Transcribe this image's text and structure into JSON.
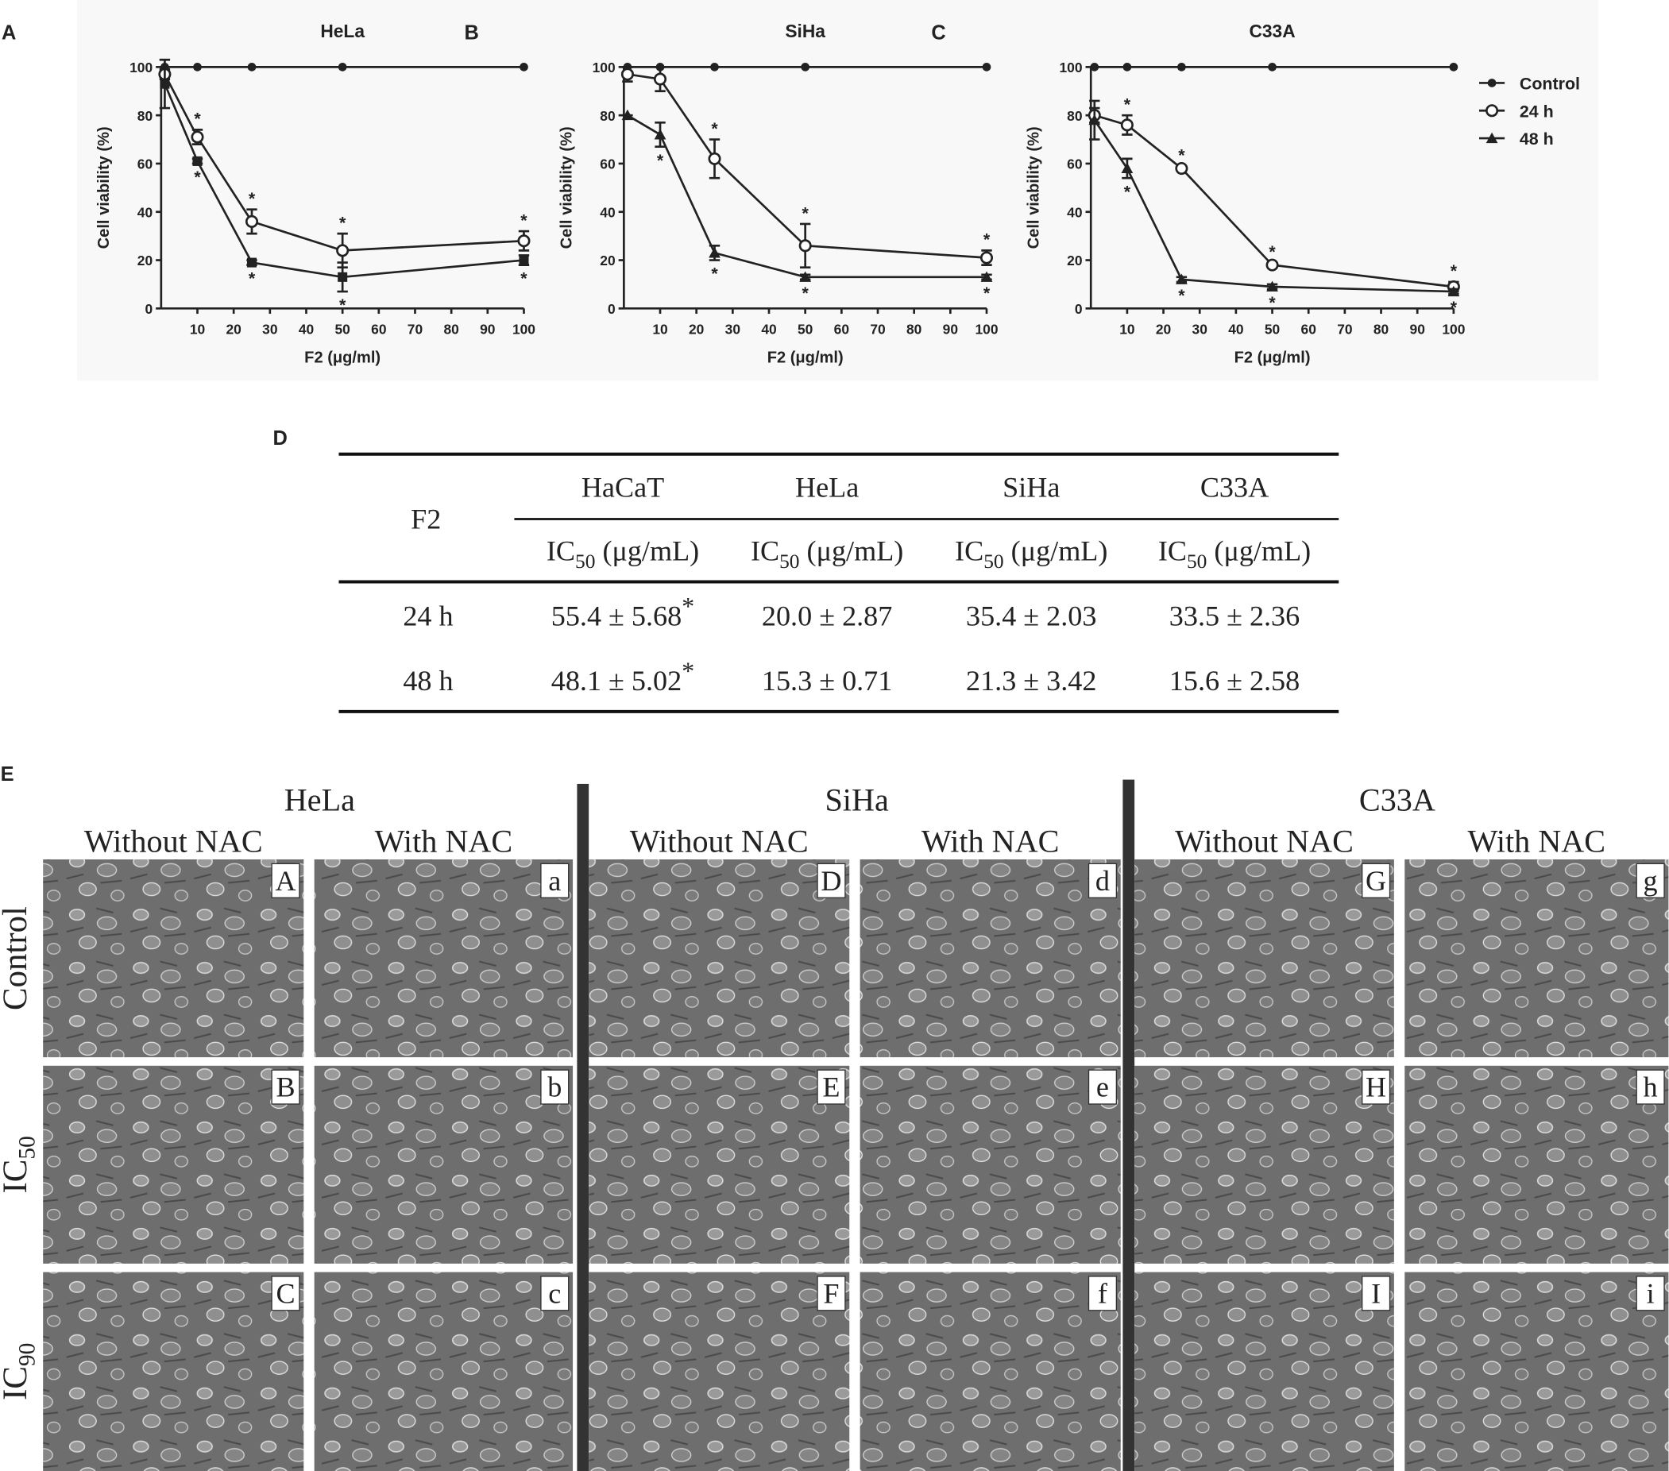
{
  "chart_data": [
    {
      "type": "line",
      "panel": "A",
      "title": "HeLa",
      "xlabel": "F2 (μg/ml)",
      "ylabel": "Cell viability (%)",
      "x": [
        1,
        10,
        25,
        50,
        100
      ],
      "xlim": [
        0,
        100
      ],
      "xticks": [
        10,
        20,
        30,
        40,
        50,
        60,
        70,
        80,
        90,
        100
      ],
      "ylim": [
        0,
        100
      ],
      "yticks": [
        0,
        20,
        40,
        60,
        80,
        100
      ],
      "series": [
        {
          "name": "Control",
          "color": "#222222",
          "marker": "filled-circle",
          "values": [
            100,
            100,
            100,
            100,
            100
          ]
        },
        {
          "name": "24 h",
          "color": "#222222",
          "marker": "open-circle",
          "values": [
            97,
            71,
            36,
            24,
            28
          ],
          "errors": [
            2,
            3,
            5,
            7,
            4
          ],
          "significance": [
            null,
            "*",
            "*",
            "*",
            "*"
          ],
          "significance_position": "above"
        },
        {
          "name": "48 h",
          "color": "#222222",
          "marker": "square",
          "values": [
            93,
            61,
            19,
            13,
            20
          ],
          "errors": [
            10,
            1,
            1,
            6,
            2
          ],
          "significance": [
            null,
            "*",
            "*",
            "*",
            "*"
          ],
          "significance_position": "below"
        }
      ]
    },
    {
      "type": "line",
      "panel": "B",
      "title": "SiHa",
      "xlabel": "F2 (μg/ml)",
      "ylabel": "Cell viability (%)",
      "x": [
        1,
        10,
        25,
        50,
        100
      ],
      "xlim": [
        0,
        100
      ],
      "xticks": [
        10,
        20,
        30,
        40,
        50,
        60,
        70,
        80,
        90,
        100
      ],
      "ylim": [
        0,
        100
      ],
      "yticks": [
        0,
        20,
        40,
        60,
        80,
        100
      ],
      "series": [
        {
          "name": "Control",
          "color": "#222222",
          "marker": "filled-circle",
          "values": [
            100,
            100,
            100,
            100,
            100
          ]
        },
        {
          "name": "24 h",
          "color": "#222222",
          "marker": "open-circle",
          "values": [
            97,
            95,
            62,
            26,
            21
          ],
          "errors": [
            3,
            5,
            8,
            9,
            3
          ],
          "significance": [
            null,
            null,
            "*",
            "*",
            "*"
          ],
          "significance_position": "above"
        },
        {
          "name": "48 h",
          "color": "#222222",
          "marker": "triangle",
          "values": [
            80,
            72,
            23,
            13,
            13
          ],
          "errors": [
            0,
            5,
            3,
            1,
            1
          ],
          "significance": [
            null,
            "*",
            "*",
            "*",
            "*"
          ],
          "significance_position": "below"
        }
      ]
    },
    {
      "type": "line",
      "panel": "C",
      "title": "C33A",
      "xlabel": "F2 (μg/ml)",
      "ylabel": "Cell viability (%)",
      "x": [
        1,
        10,
        25,
        50,
        100
      ],
      "xlim": [
        0,
        100
      ],
      "xticks": [
        10,
        20,
        30,
        40,
        50,
        60,
        70,
        80,
        90,
        100
      ],
      "ylim": [
        0,
        100
      ],
      "yticks": [
        0,
        20,
        40,
        60,
        80,
        100
      ],
      "legend": "right",
      "series": [
        {
          "name": "Control",
          "color": "#222222",
          "marker": "filled-circle",
          "values": [
            100,
            100,
            100,
            100,
            100
          ]
        },
        {
          "name": "24 h",
          "color": "#222222",
          "marker": "open-circle",
          "values": [
            80,
            76,
            58,
            18,
            9
          ],
          "errors": [
            3,
            4,
            1,
            1,
            2
          ],
          "significance": [
            null,
            "*",
            "*",
            "*",
            "*"
          ],
          "significance_position": "above"
        },
        {
          "name": "48 h",
          "color": "#222222",
          "marker": "triangle",
          "values": [
            78,
            58,
            12,
            9,
            7
          ],
          "errors": [
            8,
            4,
            1,
            1,
            1
          ],
          "significance": [
            null,
            "*",
            "*",
            "*",
            "*"
          ],
          "significance_position": "below"
        }
      ]
    }
  ],
  "table": {
    "panel": "D",
    "row_header": "F2",
    "columns": [
      "HaCaT",
      "HeLa",
      "SiHa",
      "C33A"
    ],
    "subheader": {
      "base": "IC",
      "sub": "50",
      "unit": " (μg/mL)"
    },
    "rows": [
      {
        "label": "24 h",
        "cells": [
          "55.4 ± 5.68",
          "20.0 ± 2.87",
          "35.4 ± 2.03",
          "33.5 ± 2.36"
        ],
        "notes": [
          "*",
          null,
          null,
          null
        ]
      },
      {
        "label": "48 h",
        "cells": [
          "48.1 ± 5.02",
          "15.3 ± 0.71",
          "21.3 ± 3.42",
          "15.6 ± 2.58"
        ],
        "notes": [
          "*",
          null,
          null,
          null
        ]
      }
    ]
  },
  "micrographs": {
    "panel": "E",
    "groups": [
      {
        "name": "HeLa",
        "columns": [
          "Without NAC",
          "With NAC"
        ]
      },
      {
        "name": "SiHa",
        "columns": [
          "Without NAC",
          "With NAC"
        ]
      },
      {
        "name": "C33A",
        "columns": [
          "Without NAC",
          "With NAC"
        ]
      }
    ],
    "rows": [
      {
        "label": {
          "base": "Control"
        },
        "tiles": [
          "A",
          "a",
          "D",
          "d",
          "G",
          "g"
        ]
      },
      {
        "label": {
          "base": "IC",
          "sub": "50"
        },
        "tiles": [
          "B",
          "b",
          "E",
          "e",
          "H",
          "h"
        ]
      },
      {
        "label": {
          "base": "IC",
          "sub": "90"
        },
        "tiles": [
          "C",
          "c",
          "F",
          "f",
          "I",
          "i"
        ]
      }
    ]
  }
}
